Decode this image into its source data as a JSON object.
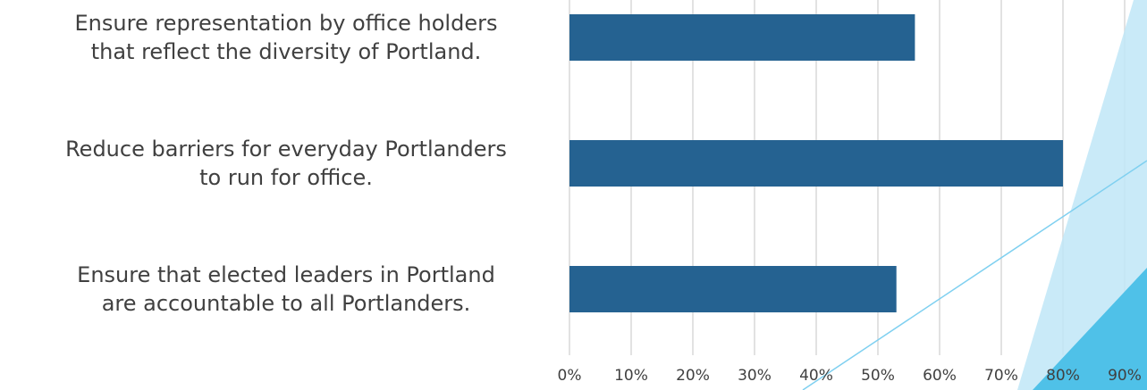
{
  "chart_data": {
    "type": "bar",
    "orientation": "horizontal",
    "categories": [
      "Ensure representation by office holders\nthat reflect the diversity of Portland.",
      "Reduce barriers for everyday Portlanders\nto run for office.",
      "Ensure that elected leaders in Portland\nare accountable to all Portlanders."
    ],
    "values": [
      56,
      80,
      53
    ],
    "color": "#256291",
    "xlim": [
      0,
      90
    ],
    "xticks": [
      {
        "value": 0,
        "label": "0%"
      },
      {
        "value": 10,
        "label": "10%"
      },
      {
        "value": 20,
        "label": "20%"
      },
      {
        "value": 30,
        "label": "30%"
      },
      {
        "value": 40,
        "label": "40%"
      },
      {
        "value": 50,
        "label": "50%"
      },
      {
        "value": 60,
        "label": "60%"
      },
      {
        "value": 70,
        "label": "70%"
      },
      {
        "value": 80,
        "label": "80%"
      },
      {
        "value": 90,
        "label": "90%"
      }
    ],
    "grid": true
  }
}
